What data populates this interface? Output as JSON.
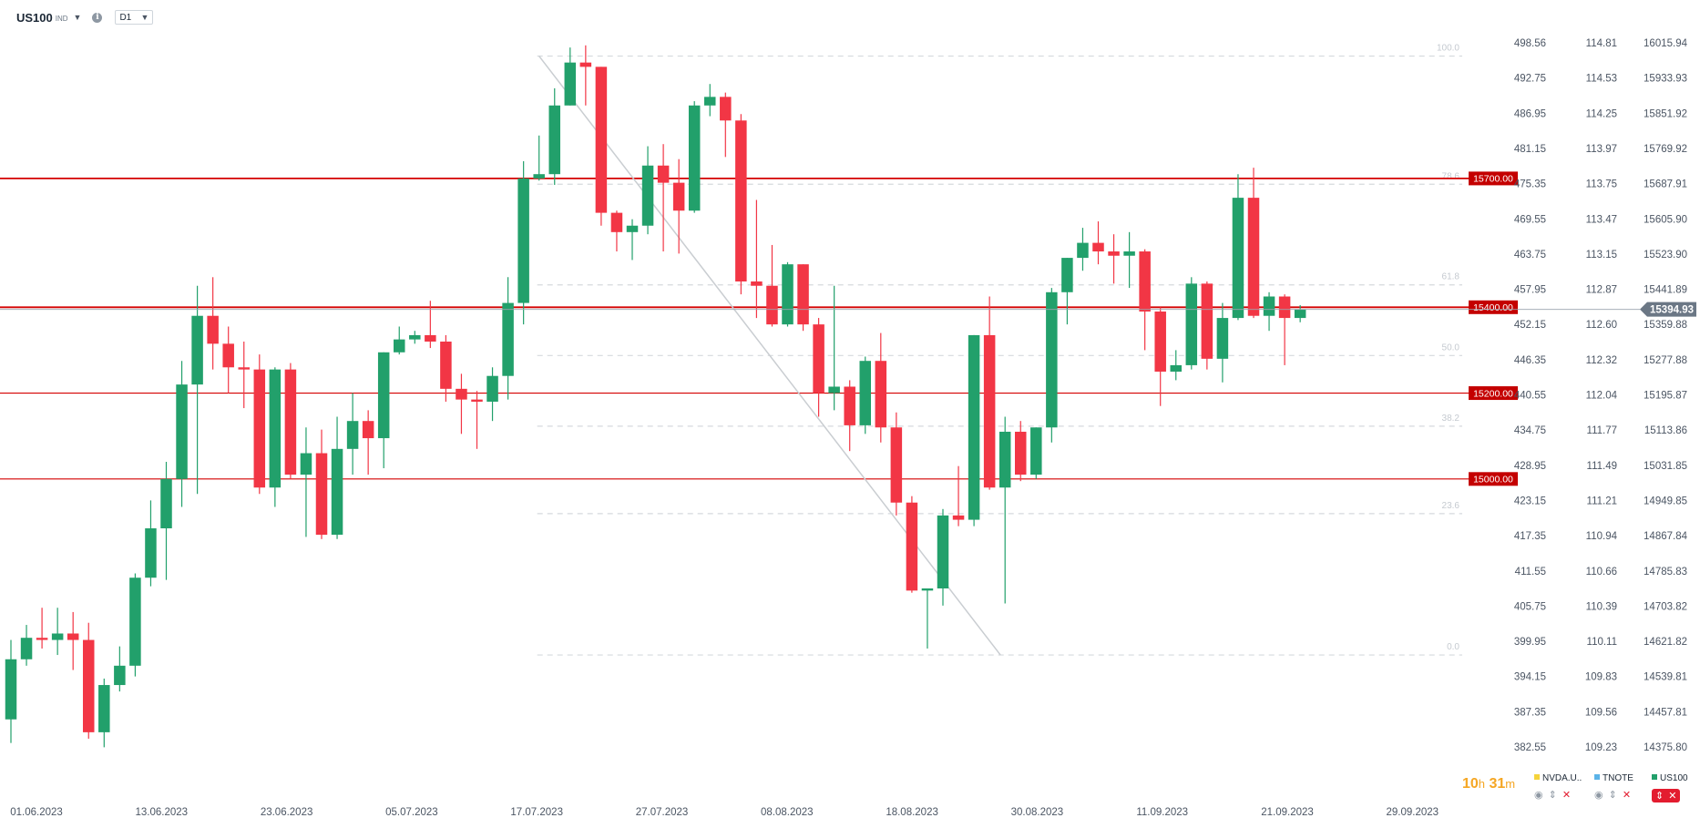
{
  "header": {
    "symbol": "US100",
    "symbol_type": "IND",
    "timeframe": "D1"
  },
  "timer": {
    "hours": "10",
    "h": "h",
    "minutes": "31",
    "m": "m"
  },
  "legend": [
    {
      "name": "NVDA.U..",
      "color": "#f5d33a"
    },
    {
      "name": "TNOTE",
      "color": "#5bb3e8"
    },
    {
      "name": "US100",
      "color": "#22a06b",
      "active": true
    }
  ],
  "colors": {
    "up": "#22a06b",
    "down": "#f23645",
    "level": "#d40000",
    "fib": "#d5d9dd",
    "trend": "#c9cdd1"
  },
  "chart_data": {
    "type": "candlestick",
    "x_labels": [
      "01.06.2023",
      "13.06.2023",
      "23.06.2023",
      "05.07.2023",
      "17.07.2023",
      "27.07.2023",
      "08.08.2023",
      "18.08.2023",
      "30.08.2023",
      "11.09.2023",
      "21.09.2023",
      "29.09.2023"
    ],
    "y_axes": [
      {
        "name": "NVDA.US",
        "ticks": [
          "498.56",
          "492.75",
          "486.95",
          "481.15",
          "475.35",
          "469.55",
          "463.75",
          "457.95",
          "452.15",
          "446.35",
          "440.55",
          "434.75",
          "428.95",
          "423.15",
          "417.35",
          "411.55",
          "405.75",
          "399.95",
          "394.15",
          "387.35",
          "382.55"
        ]
      },
      {
        "name": "TNOTE",
        "ticks": [
          "114.81",
          "114.53",
          "114.25",
          "113.97",
          "113.75",
          "113.47",
          "113.15",
          "112.87",
          "112.60",
          "112.32",
          "112.04",
          "111.77",
          "111.49",
          "111.21",
          "110.94",
          "110.66",
          "110.39",
          "110.11",
          "109.83",
          "109.56",
          "109.23"
        ]
      },
      {
        "name": "US100",
        "ticks": [
          "16015.94",
          "15933.93",
          "15851.92",
          "15769.92",
          "15687.91",
          "15605.90",
          "15523.90",
          "15441.89",
          "15359.88",
          "15277.88",
          "15195.87",
          "15113.86",
          "15031.85",
          "14949.85",
          "14867.84",
          "14785.83",
          "14703.82",
          "14621.82",
          "14539.81",
          "14457.81",
          "14375.80"
        ]
      }
    ],
    "y_range": [
      14375.8,
      16015.94
    ],
    "last_price": "15394.93",
    "levels": [
      {
        "label": "15700.00",
        "value": 15700
      },
      {
        "label": "15400.00",
        "value": 15400
      },
      {
        "label": "15200.00",
        "value": 15200
      },
      {
        "label": "15000.00",
        "value": 15000
      }
    ],
    "fibonacci": {
      "high": 15985,
      "low": 14590,
      "levels": [
        {
          "ratio": 1.0,
          "label": "100.0"
        },
        {
          "ratio": 0.786,
          "label": "78.6"
        },
        {
          "ratio": 0.618,
          "label": "61.8"
        },
        {
          "ratio": 0.5,
          "label": "50.0"
        },
        {
          "ratio": 0.382,
          "label": "38.2"
        },
        {
          "ratio": 0.236,
          "label": "23.6"
        },
        {
          "ratio": 0.0,
          "label": "0.0"
        }
      ]
    },
    "trendline": {
      "from": [
        34,
        15985
      ],
      "to": [
        63,
        14590
      ]
    },
    "candles": [
      [
        14440,
        14580,
        14385,
        14625
      ],
      [
        14580,
        14630,
        14565,
        14660
      ],
      [
        14630,
        14625,
        14605,
        14700
      ],
      [
        14625,
        14640,
        14590,
        14700
      ],
      [
        14640,
        14625,
        14555,
        14690
      ],
      [
        14625,
        14410,
        14395,
        14665
      ],
      [
        14410,
        14520,
        14375,
        14535
      ],
      [
        14520,
        14565,
        14505,
        14610
      ],
      [
        14565,
        14770,
        14540,
        14780
      ],
      [
        14770,
        14885,
        14750,
        14950
      ],
      [
        14885,
        15000,
        14765,
        15040
      ],
      [
        15000,
        15220,
        14935,
        15275
      ],
      [
        15220,
        15380,
        14965,
        15450
      ],
      [
        15380,
        15315,
        15255,
        15470
      ],
      [
        15315,
        15260,
        15200,
        15355
      ],
      [
        15260,
        15255,
        15165,
        15320
      ],
      [
        15255,
        14980,
        14965,
        15290
      ],
      [
        14980,
        15255,
        14935,
        15260
      ],
      [
        15255,
        15010,
        15000,
        15270
      ],
      [
        15010,
        15060,
        14865,
        15120
      ],
      [
        15060,
        14870,
        14860,
        15115
      ],
      [
        14870,
        15070,
        14860,
        15145
      ],
      [
        15070,
        15135,
        15010,
        15200
      ],
      [
        15135,
        15095,
        15010,
        15160
      ],
      [
        15095,
        15295,
        15025,
        15295
      ],
      [
        15295,
        15325,
        15290,
        15355
      ],
      [
        15325,
        15335,
        15315,
        15345
      ],
      [
        15335,
        15320,
        15305,
        15415
      ],
      [
        15320,
        15210,
        15180,
        15335
      ],
      [
        15210,
        15185,
        15105,
        15245
      ],
      [
        15185,
        15180,
        15070,
        15205
      ],
      [
        15180,
        15240,
        15135,
        15260
      ],
      [
        15240,
        15410,
        15185,
        15470
      ],
      [
        15410,
        15700,
        15360,
        15740
      ],
      [
        15700,
        15710,
        15695,
        15800
      ],
      [
        15710,
        15870,
        15685,
        15910
      ],
      [
        15870,
        15970,
        15870,
        16005
      ],
      [
        15970,
        15960,
        15870,
        16010
      ],
      [
        15960,
        15620,
        15590,
        15960
      ],
      [
        15620,
        15575,
        15530,
        15625
      ],
      [
        15575,
        15590,
        15510,
        15605
      ],
      [
        15590,
        15730,
        15570,
        15775
      ],
      [
        15730,
        15690,
        15530,
        15780
      ],
      [
        15690,
        15625,
        15525,
        15745
      ],
      [
        15625,
        15870,
        15620,
        15880
      ],
      [
        15870,
        15890,
        15845,
        15920
      ],
      [
        15890,
        15835,
        15750,
        15900
      ],
      [
        15835,
        15460,
        15430,
        15850
      ],
      [
        15460,
        15450,
        15375,
        15650
      ],
      [
        15450,
        15360,
        15355,
        15545
      ],
      [
        15360,
        15500,
        15355,
        15505
      ],
      [
        15500,
        15360,
        15345,
        15500
      ],
      [
        15360,
        15200,
        15145,
        15375
      ],
      [
        15200,
        15215,
        15160,
        15450
      ],
      [
        15215,
        15125,
        15065,
        15230
      ],
      [
        15125,
        15275,
        15105,
        15285
      ],
      [
        15275,
        15120,
        15085,
        15340
      ],
      [
        15120,
        14945,
        14915,
        15155
      ],
      [
        14945,
        14740,
        14735,
        14960
      ],
      [
        14740,
        14745,
        14605,
        14745
      ],
      [
        14745,
        14915,
        14705,
        14930
      ],
      [
        14915,
        14905,
        14890,
        15030
      ],
      [
        14905,
        15335,
        14890,
        15335
      ],
      [
        15335,
        14980,
        14975,
        15425
      ],
      [
        14980,
        15110,
        14710,
        15145
      ],
      [
        15110,
        15010,
        14995,
        15135
      ],
      [
        15010,
        15120,
        15000,
        15120
      ],
      [
        15120,
        15435,
        15085,
        15445
      ],
      [
        15435,
        15515,
        15360,
        15515
      ],
      [
        15515,
        15550,
        15485,
        15585
      ],
      [
        15550,
        15530,
        15500,
        15600
      ],
      [
        15530,
        15520,
        15455,
        15570
      ],
      [
        15520,
        15530,
        15445,
        15575
      ],
      [
        15530,
        15390,
        15300,
        15535
      ],
      [
        15390,
        15250,
        15170,
        15400
      ],
      [
        15250,
        15265,
        15230,
        15300
      ],
      [
        15265,
        15455,
        15255,
        15470
      ],
      [
        15455,
        15280,
        15255,
        15460
      ],
      [
        15280,
        15375,
        15225,
        15410
      ],
      [
        15375,
        15655,
        15370,
        15710
      ],
      [
        15655,
        15380,
        15375,
        15725
      ],
      [
        15380,
        15425,
        15345,
        15435
      ],
      [
        15425,
        15375,
        15265,
        15430
      ],
      [
        15375,
        15395,
        15365,
        15405
      ]
    ]
  }
}
